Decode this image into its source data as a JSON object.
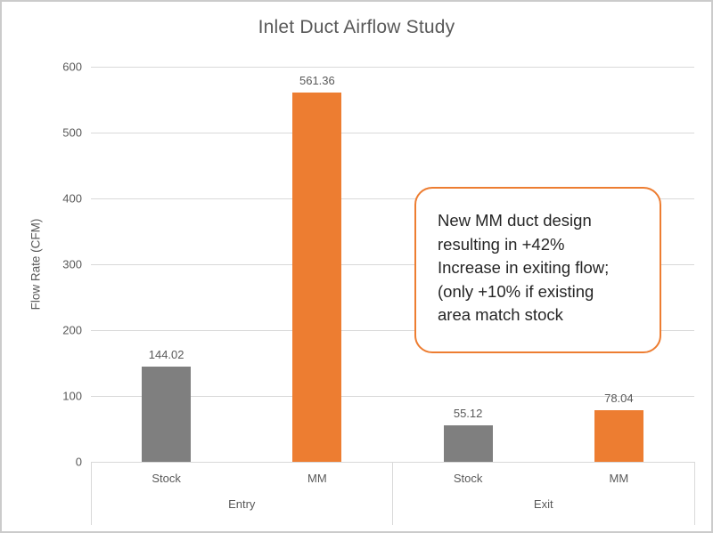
{
  "title": "Inlet Duct Airflow Study",
  "annotation": {
    "text": "New MM duct design\nresulting in +42%\nIncrease in exiting flow;\n(only +10% if existing\narea match stock"
  },
  "colors": {
    "stock_bar": "#7f7f7f",
    "mm_bar": "#ed7d31",
    "text": "#595959",
    "gridline": "#d9d9d9",
    "annotation_border": "#ed7d31",
    "annotation_text": "#262626"
  },
  "chart_data": {
    "type": "bar",
    "title": "Inlet Duct Airflow Study",
    "xlabel": "",
    "ylabel": "Flow Rate (CFM)",
    "ylim": [
      0,
      600
    ],
    "yticks": [
      0,
      100,
      200,
      300,
      400,
      500,
      600
    ],
    "grid": true,
    "legend": false,
    "groups": [
      "Entry",
      "Exit"
    ],
    "categories": [
      "Stock",
      "MM"
    ],
    "series": [
      {
        "group": "Entry",
        "category": "Stock",
        "value": 144.02,
        "color": "#7f7f7f"
      },
      {
        "group": "Entry",
        "category": "MM",
        "value": 561.36,
        "color": "#ed7d31"
      },
      {
        "group": "Exit",
        "category": "Stock",
        "value": 55.12,
        "color": "#7f7f7f"
      },
      {
        "group": "Exit",
        "category": "MM",
        "value": 78.04,
        "color": "#ed7d31"
      }
    ],
    "annotation": "New MM duct design resulting in +42% Increase in exiting flow; (only +10% if existing area match stock"
  }
}
